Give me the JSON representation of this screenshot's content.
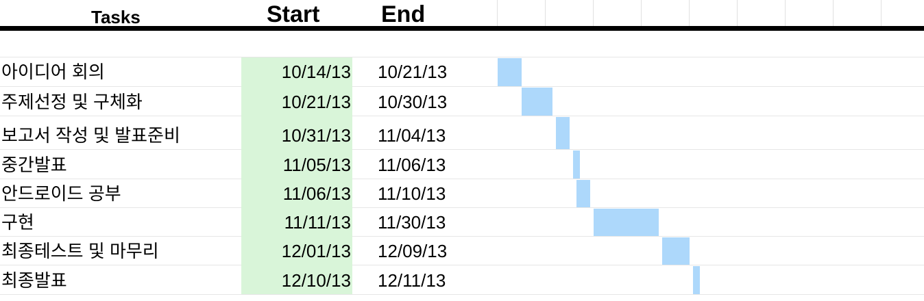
{
  "headers": {
    "tasks": "Tasks",
    "start": "Start",
    "end": "End"
  },
  "colors": {
    "start_column": "#d9f5d9",
    "gantt_bar": "#add8fb",
    "header_rule": "#000000"
  },
  "chart_data": {
    "type": "gantt",
    "columns": [
      "Tasks",
      "Start",
      "End"
    ],
    "date_format": "MM/DD/YY",
    "timeline_range": [
      "10/14/13",
      "12/11/13"
    ],
    "tasks": [
      {
        "task": "아이디어 회의",
        "start": "10/14/13",
        "end": "10/21/13"
      },
      {
        "task": "주제선정 및 구체화",
        "start": "10/21/13",
        "end": "10/30/13"
      },
      {
        "task": "보고서 작성 및 발표준비",
        "start": "10/31/13",
        "end": "11/04/13"
      },
      {
        "task": "중간발표",
        "start": "11/05/13",
        "end": "11/06/13"
      },
      {
        "task": "안드로이드 공부",
        "start": "11/06/13",
        "end": "11/10/13"
      },
      {
        "task": "구현",
        "start": "11/11/13",
        "end": "11/30/13"
      },
      {
        "task": "최종테스트 및 마무리",
        "start": "12/01/13",
        "end": "12/09/13"
      },
      {
        "task": "최종발표",
        "start": "12/10/13",
        "end": "12/11/13"
      }
    ]
  }
}
